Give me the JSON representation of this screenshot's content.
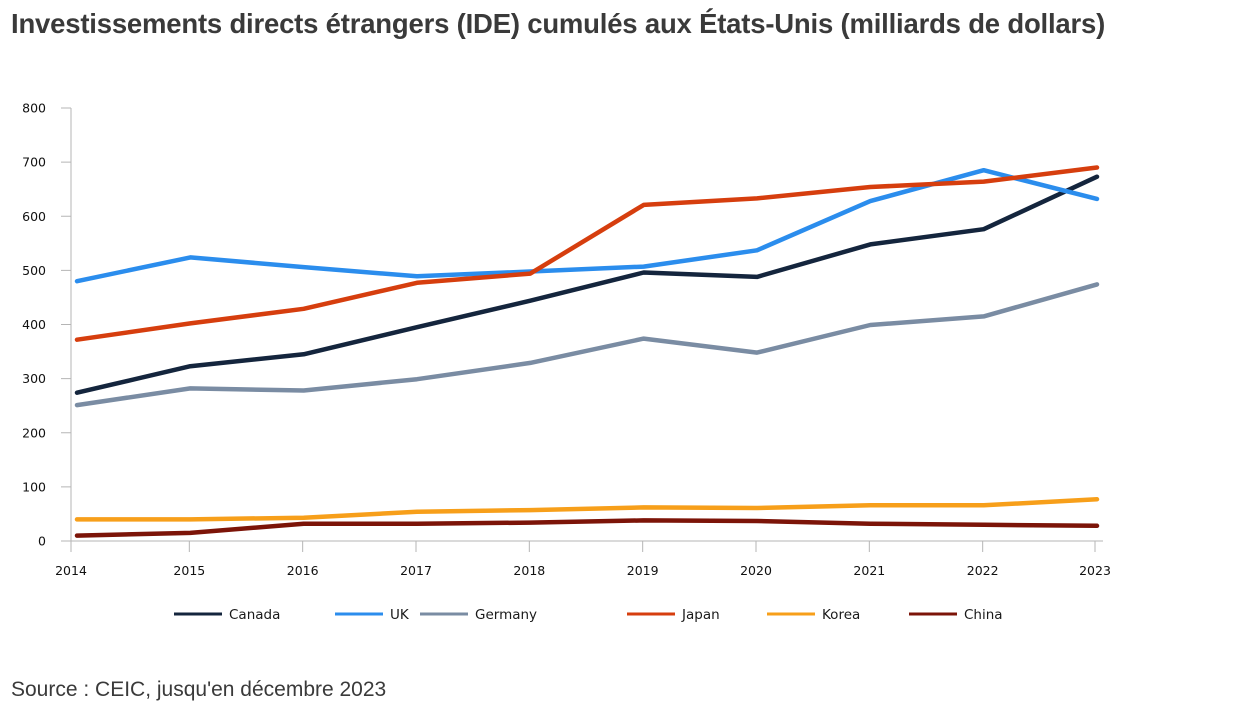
{
  "title": "Investissements directs étrangers (IDE) cumulés aux États-Unis (milliards de dollars)",
  "source": "Source : CEIC, jusqu'en décembre 2023",
  "chart_data": {
    "type": "line",
    "title": "Investissements directs étrangers (IDE) cumulés aux États-Unis (milliards de dollars)",
    "xlabel": "",
    "ylabel": "",
    "x": [
      "2014",
      "2015",
      "2016",
      "2017",
      "2018",
      "2019",
      "2020",
      "2021",
      "2022",
      "2023"
    ],
    "ylim": [
      0,
      800
    ],
    "yticks": [
      0,
      100,
      200,
      300,
      400,
      500,
      600,
      700,
      800
    ],
    "grid": false,
    "legend_position": "bottom",
    "series": [
      {
        "name": "Canada",
        "color": "#14253d",
        "values": [
          274,
          323,
          345,
          395,
          444,
          496,
          488,
          548,
          576,
          673
        ]
      },
      {
        "name": "UK",
        "color": "#2b8ded",
        "values": [
          480,
          524,
          506,
          489,
          498,
          507,
          537,
          628,
          685,
          632
        ]
      },
      {
        "name": "Germany",
        "color": "#7a8ca3",
        "values": [
          251,
          282,
          278,
          299,
          329,
          374,
          348,
          399,
          415,
          474
        ]
      },
      {
        "name": "Japan",
        "color": "#d63e0e",
        "values": [
          372,
          402,
          429,
          477,
          494,
          621,
          633,
          654,
          664,
          690
        ]
      },
      {
        "name": "Korea",
        "color": "#f79f1a",
        "values": [
          40,
          40,
          43,
          54,
          57,
          62,
          61,
          66,
          66,
          77
        ]
      },
      {
        "name": "China",
        "color": "#7c1408",
        "values": [
          10,
          15,
          32,
          32,
          34,
          38,
          37,
          32,
          30,
          28
        ]
      }
    ]
  }
}
